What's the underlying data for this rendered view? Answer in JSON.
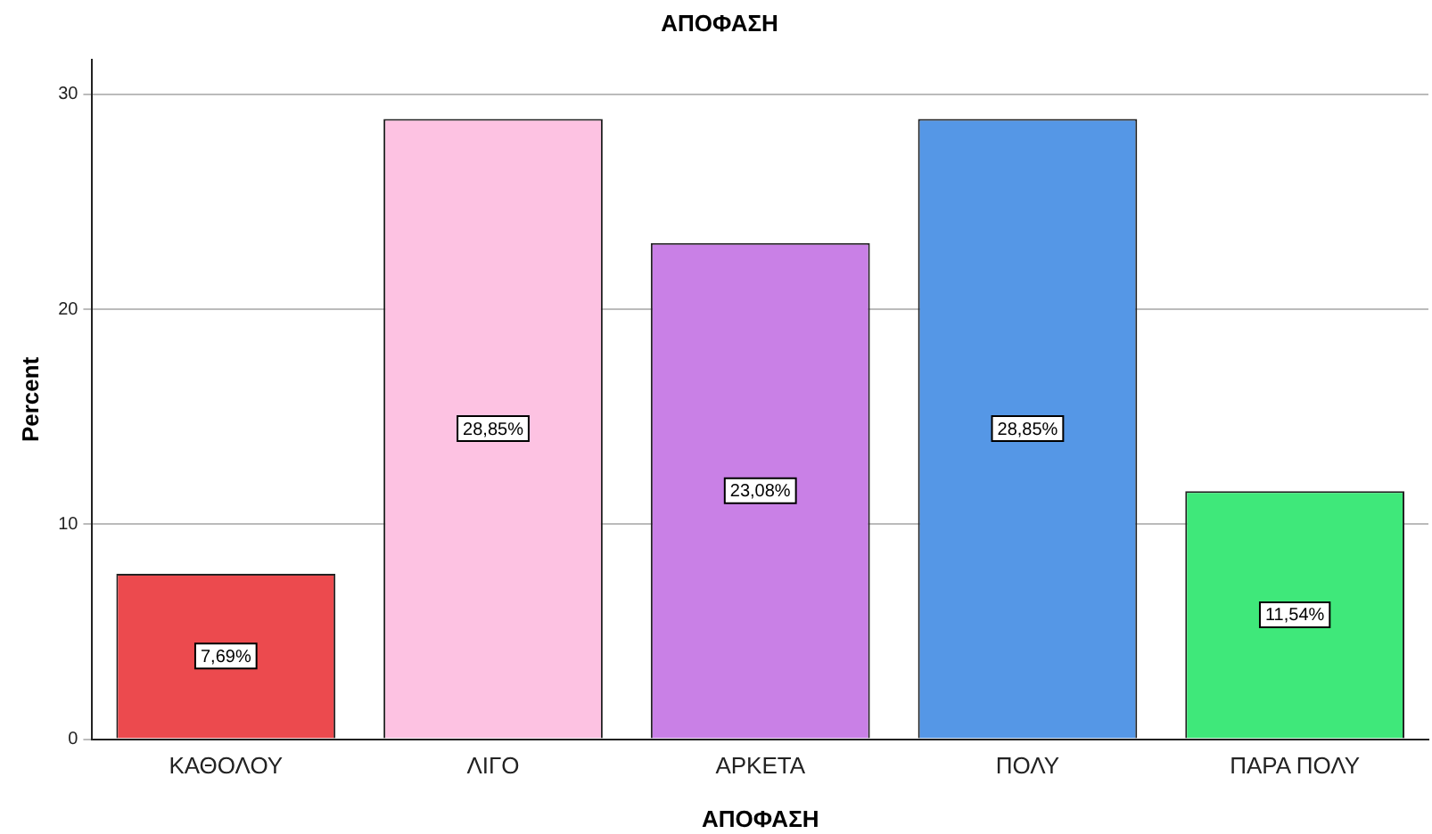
{
  "chart_data": {
    "type": "bar",
    "title": "ΑΠΟΦΑΣΗ",
    "xlabel": "ΑΠΟΦΑΣΗ",
    "ylabel": "Percent",
    "categories": [
      "ΚΑΘΟΛΟΥ",
      "ΛΙΓΟ",
      "ΑΡΚΕΤΑ",
      "ΠΟΛΥ",
      "ΠΑΡΑ ΠΟΛΥ"
    ],
    "values": [
      7.69,
      28.85,
      23.08,
      28.85,
      11.54
    ],
    "colors": [
      "#ec4a4e",
      "#fdc2e2",
      "#c980e6",
      "#5597e6",
      "#3fe87a"
    ],
    "value_labels": [
      "7,69%",
      "28,85%",
      "23,08%",
      "28,85%",
      "11,54%"
    ],
    "ylim": [
      0,
      31.6
    ],
    "yticks": [
      0,
      10,
      20,
      30
    ],
    "grid": "y",
    "legend": false
  }
}
